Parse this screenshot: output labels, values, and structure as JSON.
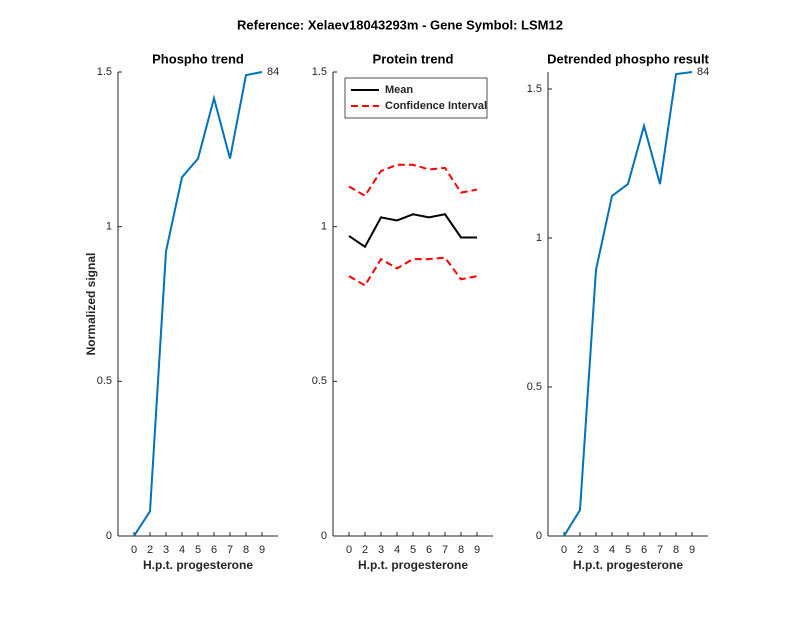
{
  "title": "Reference:  Xelaev18043293m - Gene Symbol:  LSM12",
  "chart_data": [
    {
      "type": "line",
      "title": "Phospho trend",
      "xlabel": "H.p.t. progesterone",
      "ylabel": "Normalized signal",
      "categories": [
        "0",
        "2",
        "3",
        "4",
        "5",
        "6",
        "7",
        "8",
        "9"
      ],
      "series": [
        {
          "color": "#0072bd",
          "values": [
            0,
            0.08,
            0.92,
            1.16,
            1.22,
            1.415,
            1.22,
            1.49,
            1.5
          ]
        }
      ],
      "annotation": "84",
      "ylim": [
        0,
        1.5
      ],
      "yticks": [
        0,
        0.5,
        1,
        1.5
      ]
    },
    {
      "type": "band",
      "title": "Protein trend",
      "xlabel": "H.p.t. progesterone",
      "categories": [
        "0",
        "2",
        "3",
        "4",
        "5",
        "6",
        "7",
        "8",
        "9"
      ],
      "series": [
        {
          "name": "Mean",
          "color": "#000000",
          "values": [
            0.97,
            0.935,
            1.03,
            1.02,
            1.04,
            1.03,
            1.04,
            0.965,
            0.965
          ]
        },
        {
          "name": "Confidence Interval",
          "color": "#ff0000",
          "upper": [
            1.13,
            1.1,
            1.18,
            1.2,
            1.2,
            1.185,
            1.19,
            1.11,
            1.12
          ],
          "lower": [
            0.84,
            0.81,
            0.895,
            0.865,
            0.895,
            0.895,
            0.9,
            0.83,
            0.84
          ]
        }
      ],
      "legend": "upper-left",
      "ylim": [
        0,
        1.5
      ],
      "yticks": [
        0,
        0.5,
        1,
        1.5
      ]
    },
    {
      "type": "line",
      "title": "Detrended phospho result",
      "xlabel": "H.p.t. progesterone",
      "categories": [
        "0",
        "2",
        "3",
        "4",
        "5",
        "6",
        "7",
        "8",
        "9"
      ],
      "series": [
        {
          "color": "#0072bd",
          "values": [
            0,
            0.087,
            0.893,
            1.141,
            1.181,
            1.376,
            1.181,
            1.55,
            1.557
          ]
        }
      ],
      "annotation": "84",
      "ylim": [
        0,
        1.557
      ],
      "yticks": [
        0,
        0.5,
        1,
        1.5
      ]
    }
  ]
}
